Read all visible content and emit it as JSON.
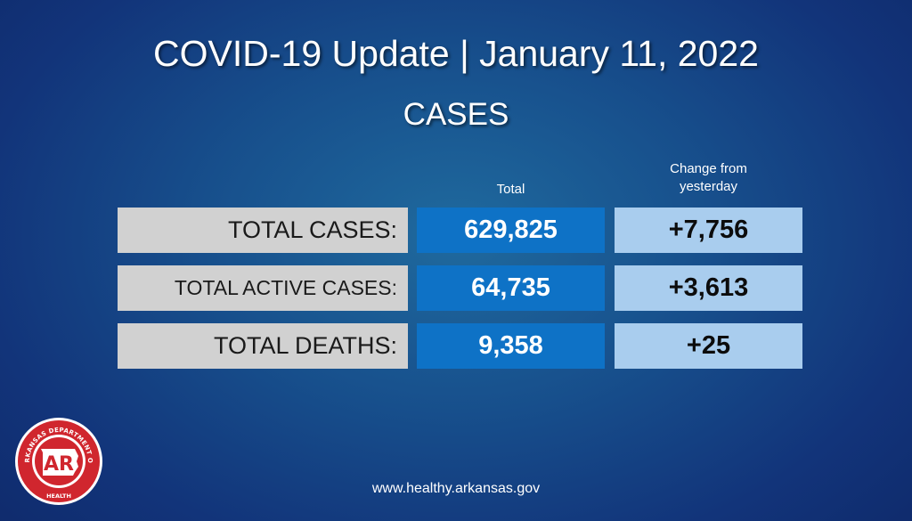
{
  "header": {
    "title": "COVID-19 Update | January 11, 2022",
    "subtitle": "CASES"
  },
  "table": {
    "columns": {
      "total": "Total",
      "change_line1": "Change from",
      "change_line2": "yesterday"
    },
    "rows": [
      {
        "label": "TOTAL CASES:",
        "total": "629,825",
        "change": "+7,756"
      },
      {
        "label": "TOTAL ACTIVE CASES:",
        "total": "64,735",
        "change": "+3,613"
      },
      {
        "label": "TOTAL DEATHS:",
        "total": "9,358",
        "change": "+25"
      }
    ]
  },
  "footer": {
    "url": "www.healthy.arkansas.gov"
  },
  "logo": {
    "name": "arkansas-department-of-health-seal-icon",
    "ring_text": "ARKANSAS DEPARTMENT OF",
    "bottom_text": "HEALTH",
    "monogram": "AR"
  },
  "colors": {
    "background": "#174f8c",
    "label_cell": "#d1d1d1",
    "total_cell": "#0e72c6",
    "change_cell": "#a9cdee",
    "seal_red": "#d0262e"
  }
}
